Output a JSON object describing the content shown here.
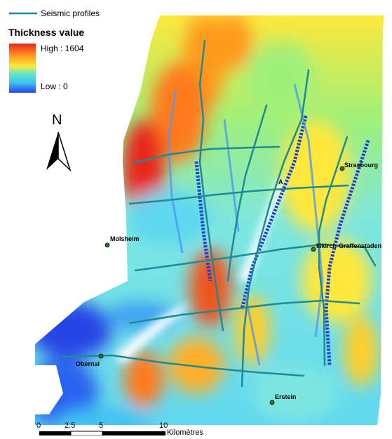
{
  "legend": {
    "profiles_label": "Seismic profiles",
    "profiles_color": "#1e8a96",
    "title": "Thickness value",
    "high_label": "High : 1604",
    "low_label": "Low : 0",
    "ramp_colors": [
      "#e8261a",
      "#ff9a1f",
      "#ffe83a",
      "#5fe6c4",
      "#3fc2f2",
      "#2544e6"
    ]
  },
  "north_arrow": {
    "label": "N"
  },
  "places": [
    {
      "name": "Strasbourg"
    },
    {
      "name": "Molsheim"
    },
    {
      "name": "Illkirch-Graffenstaden"
    },
    {
      "name": "Obernai"
    },
    {
      "name": "Erstein"
    },
    {
      "name": "A"
    }
  ],
  "scale_bar": {
    "ticks": [
      "0",
      "2.5",
      "5",
      "10"
    ],
    "unit": "Kilomètres"
  }
}
